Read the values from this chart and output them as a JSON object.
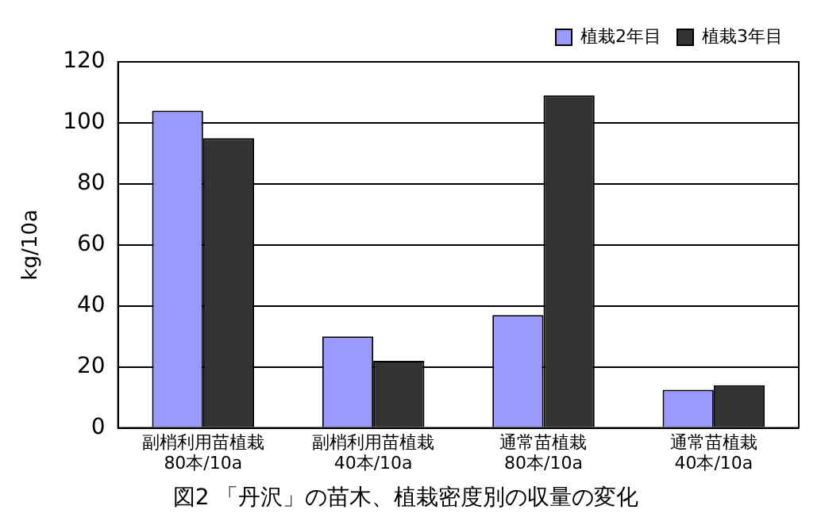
{
  "chart_data": {
    "type": "bar",
    "title": "図2 「丹沢」の苗木、植栽密度別の収量の変化",
    "ylabel": "kg/10a",
    "categories": [
      "副梢利用苗植栽\n80本/10a",
      "副梢利用苗植栽\n40本/10a",
      "通常苗植栽\n80本/10a",
      "通常苗植栽\n40本/10a"
    ],
    "series": [
      {
        "name": "植栽2年目",
        "color": "#9999ff",
        "values": [
          104,
          30,
          37,
          12.5
        ]
      },
      {
        "name": "植栽3年目",
        "color": "#333333",
        "values": [
          95,
          22,
          109,
          14
        ]
      }
    ],
    "ylim": [
      0,
      120
    ],
    "yticks": [
      0,
      20,
      40,
      60,
      80,
      100,
      120
    ],
    "grid": "y",
    "legend": "top right"
  }
}
